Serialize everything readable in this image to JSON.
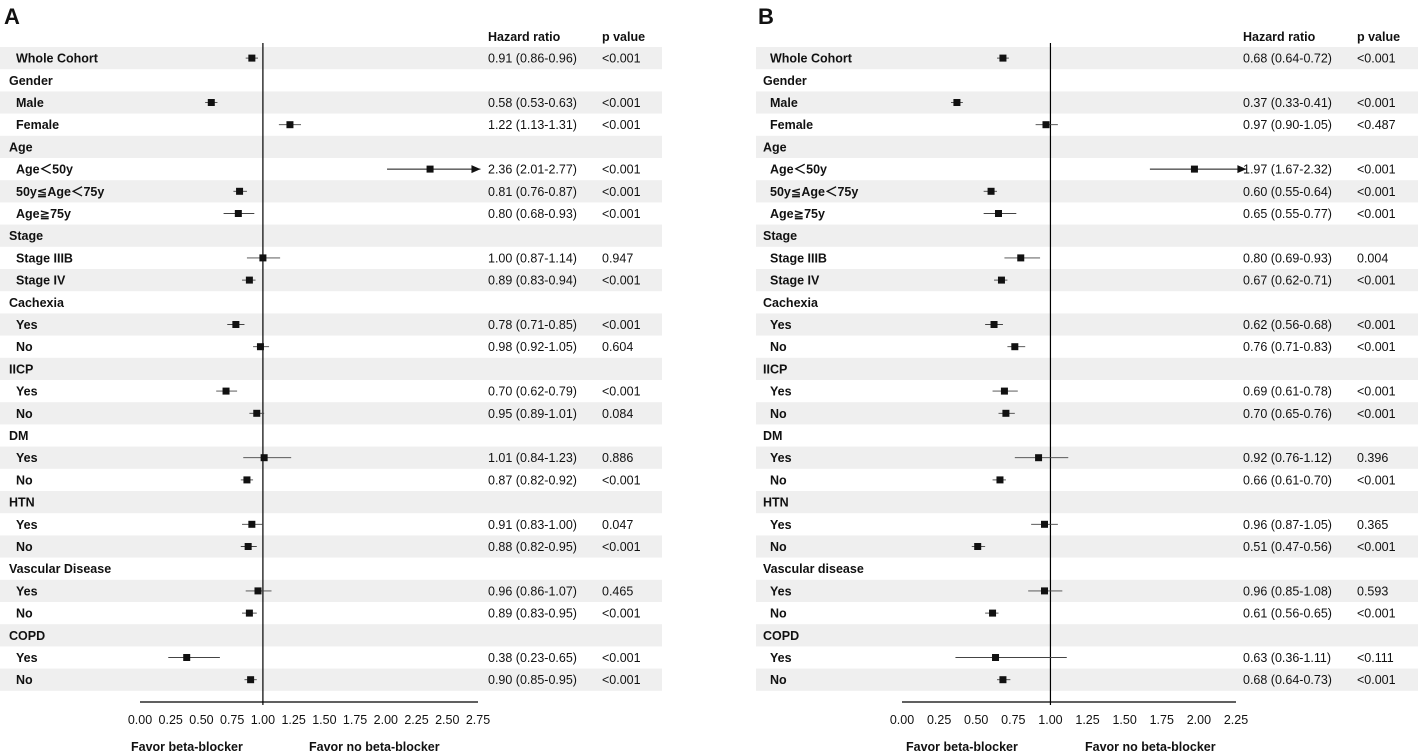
{
  "panels": [
    {
      "letter": "A",
      "headers": {
        "hr": "Hazard ratio",
        "p": "p value"
      },
      "favor_left": "Favor beta-blocker",
      "favor_right": "Favor no beta-blocker",
      "axis": {
        "min": 0,
        "max": 2.75,
        "ticks": [
          "0.00",
          "0.25",
          "0.50",
          "0.75",
          "1.00",
          "1.25",
          "1.50",
          "1.75",
          "2.00",
          "2.25",
          "2.50",
          "2.75"
        ],
        "ref": 1.0
      },
      "rows": [
        {
          "label": "Whole Cohort",
          "type": "estimate",
          "est": 0.91,
          "lo": 0.86,
          "hi": 0.96,
          "hr": "0.91 (0.86-0.96)",
          "p": "<0.001"
        },
        {
          "label": "Gender",
          "type": "header"
        },
        {
          "label": "Male",
          "type": "estimate",
          "est": 0.58,
          "lo": 0.53,
          "hi": 0.63,
          "hr": "0.58 (0.53-0.63)",
          "p": "<0.001"
        },
        {
          "label": "Female",
          "type": "estimate",
          "est": 1.22,
          "lo": 1.13,
          "hi": 1.31,
          "hr": "1.22 (1.13-1.31)",
          "p": "<0.001"
        },
        {
          "label": "Age",
          "type": "header"
        },
        {
          "label": "Age＜50y",
          "type": "estimate",
          "est": 2.36,
          "lo": 2.01,
          "hi": 2.77,
          "arrow": true,
          "hr": "2.36 (2.01-2.77)",
          "p": "<0.001"
        },
        {
          "label": "50y≦Age＜75y",
          "type": "estimate",
          "est": 0.81,
          "lo": 0.76,
          "hi": 0.87,
          "hr": "0.81 (0.76-0.87)",
          "p": "<0.001"
        },
        {
          "label": "Age≧75y",
          "type": "estimate",
          "est": 0.8,
          "lo": 0.68,
          "hi": 0.93,
          "hr": "0.80 (0.68-0.93)",
          "p": "<0.001"
        },
        {
          "label": "Stage",
          "type": "header"
        },
        {
          "label": "Stage IIIB",
          "type": "estimate",
          "est": 1.0,
          "lo": 0.87,
          "hi": 1.14,
          "hr": "1.00 (0.87-1.14)",
          "p": "0.947"
        },
        {
          "label": "Stage IV",
          "type": "estimate",
          "est": 0.89,
          "lo": 0.83,
          "hi": 0.94,
          "hr": "0.89 (0.83-0.94)",
          "p": "<0.001"
        },
        {
          "label": "Cachexia",
          "type": "header"
        },
        {
          "label": "Yes",
          "type": "estimate",
          "est": 0.78,
          "lo": 0.71,
          "hi": 0.85,
          "hr": "0.78 (0.71-0.85)",
          "p": "<0.001"
        },
        {
          "label": "No",
          "type": "estimate",
          "est": 0.98,
          "lo": 0.92,
          "hi": 1.05,
          "hr": "0.98 (0.92-1.05)",
          "p": "0.604"
        },
        {
          "label": "IICP",
          "type": "header"
        },
        {
          "label": "Yes",
          "type": "estimate",
          "est": 0.7,
          "lo": 0.62,
          "hi": 0.79,
          "hr": "0.70 (0.62-0.79)",
          "p": "<0.001"
        },
        {
          "label": "No",
          "type": "estimate",
          "est": 0.95,
          "lo": 0.89,
          "hi": 1.01,
          "hr": "0.95 (0.89-1.01)",
          "p": "0.084"
        },
        {
          "label": "DM",
          "type": "header"
        },
        {
          "label": "Yes",
          "type": "estimate",
          "est": 1.01,
          "lo": 0.84,
          "hi": 1.23,
          "hr": "1.01 (0.84-1.23)",
          "p": "0.886"
        },
        {
          "label": "No",
          "type": "estimate",
          "est": 0.87,
          "lo": 0.82,
          "hi": 0.92,
          "hr": "0.87 (0.82-0.92)",
          "p": "<0.001"
        },
        {
          "label": "HTN",
          "type": "header"
        },
        {
          "label": "Yes",
          "type": "estimate",
          "est": 0.91,
          "lo": 0.83,
          "hi": 1.0,
          "hr": "0.91 (0.83-1.00)",
          "p": "0.047"
        },
        {
          "label": "No",
          "type": "estimate",
          "est": 0.88,
          "lo": 0.82,
          "hi": 0.95,
          "hr": "0.88 (0.82-0.95)",
          "p": "<0.001"
        },
        {
          "label": "Vascular Disease",
          "type": "header"
        },
        {
          "label": "Yes",
          "type": "estimate",
          "est": 0.96,
          "lo": 0.86,
          "hi": 1.07,
          "hr": "0.96 (0.86-1.07)",
          "p": "0.465"
        },
        {
          "label": "No",
          "type": "estimate",
          "est": 0.89,
          "lo": 0.83,
          "hi": 0.95,
          "hr": "0.89 (0.83-0.95)",
          "p": "<0.001"
        },
        {
          "label": "COPD",
          "type": "header"
        },
        {
          "label": "Yes",
          "type": "estimate",
          "est": 0.38,
          "lo": 0.23,
          "hi": 0.65,
          "hr": "0.38 (0.23-0.65)",
          "p": "<0.001"
        },
        {
          "label": "No",
          "type": "estimate",
          "est": 0.9,
          "lo": 0.85,
          "hi": 0.95,
          "hr": "0.90 (0.85-0.95)",
          "p": "<0.001"
        }
      ]
    },
    {
      "letter": "B",
      "headers": {
        "hr": "Hazard ratio",
        "p": "p value"
      },
      "favor_left": "Favor beta-blocker",
      "favor_right": "Favor no beta-blocker",
      "axis": {
        "min": 0,
        "max": 2.25,
        "ticks": [
          "0.00",
          "0.25",
          "0.50",
          "0.75",
          "1.00",
          "1.25",
          "1.50",
          "1.75",
          "2.00",
          "2.25"
        ],
        "ref": 1.0
      },
      "rows": [
        {
          "label": "Whole Cohort",
          "type": "estimate",
          "est": 0.68,
          "lo": 0.64,
          "hi": 0.72,
          "hr": "0.68 (0.64-0.72)",
          "p": "<0.001"
        },
        {
          "label": "Gender",
          "type": "header"
        },
        {
          "label": "Male",
          "type": "estimate",
          "est": 0.37,
          "lo": 0.33,
          "hi": 0.41,
          "hr": "0.37 (0.33-0.41)",
          "p": "<0.001"
        },
        {
          "label": "Female",
          "type": "estimate",
          "est": 0.97,
          "lo": 0.9,
          "hi": 1.05,
          "hr": "0.97 (0.90-1.05)",
          "p": "<0.487"
        },
        {
          "label": "Age",
          "type": "header"
        },
        {
          "label": "Age＜50y",
          "type": "estimate",
          "est": 1.97,
          "lo": 1.67,
          "hi": 2.32,
          "arrow": true,
          "hr": "1.97 (1.67-2.32)",
          "p": "<0.001"
        },
        {
          "label": "50y≦Age＜75y",
          "type": "estimate",
          "est": 0.6,
          "lo": 0.55,
          "hi": 0.64,
          "hr": "0.60 (0.55-0.64)",
          "p": "<0.001"
        },
        {
          "label": "Age≧75y",
          "type": "estimate",
          "est": 0.65,
          "lo": 0.55,
          "hi": 0.77,
          "hr": "0.65 (0.55-0.77)",
          "p": "<0.001"
        },
        {
          "label": "Stage",
          "type": "header"
        },
        {
          "label": "Stage IIIB",
          "type": "estimate",
          "est": 0.8,
          "lo": 0.69,
          "hi": 0.93,
          "hr": "0.80 (0.69-0.93)",
          "p": "0.004"
        },
        {
          "label": "Stage IV",
          "type": "estimate",
          "est": 0.67,
          "lo": 0.62,
          "hi": 0.71,
          "hr": "0.67 (0.62-0.71)",
          "p": "<0.001"
        },
        {
          "label": "Cachexia",
          "type": "header"
        },
        {
          "label": "Yes",
          "type": "estimate",
          "est": 0.62,
          "lo": 0.56,
          "hi": 0.68,
          "hr": "0.62 (0.56-0.68)",
          "p": "<0.001"
        },
        {
          "label": "No",
          "type": "estimate",
          "est": 0.76,
          "lo": 0.71,
          "hi": 0.83,
          "hr": "0.76 (0.71-0.83)",
          "p": "<0.001"
        },
        {
          "label": "IICP",
          "type": "header"
        },
        {
          "label": "Yes",
          "type": "estimate",
          "est": 0.69,
          "lo": 0.61,
          "hi": 0.78,
          "hr": "0.69 (0.61-0.78)",
          "p": "<0.001"
        },
        {
          "label": "No",
          "type": "estimate",
          "est": 0.7,
          "lo": 0.65,
          "hi": 0.76,
          "hr": "0.70 (0.65-0.76)",
          "p": "<0.001"
        },
        {
          "label": "DM",
          "type": "header"
        },
        {
          "label": "Yes",
          "type": "estimate",
          "est": 0.92,
          "lo": 0.76,
          "hi": 1.12,
          "hr": "0.92 (0.76-1.12)",
          "p": "0.396"
        },
        {
          "label": "No",
          "type": "estimate",
          "est": 0.66,
          "lo": 0.61,
          "hi": 0.7,
          "hr": "0.66 (0.61-0.70)",
          "p": "<0.001"
        },
        {
          "label": "HTN",
          "type": "header"
        },
        {
          "label": "Yes",
          "type": "estimate",
          "est": 0.96,
          "lo": 0.87,
          "hi": 1.05,
          "hr": "0.96 (0.87-1.05)",
          "p": "0.365"
        },
        {
          "label": "No",
          "type": "estimate",
          "est": 0.51,
          "lo": 0.47,
          "hi": 0.56,
          "hr": "0.51 (0.47-0.56)",
          "p": "<0.001"
        },
        {
          "label": "Vascular disease",
          "type": "header"
        },
        {
          "label": "Yes",
          "type": "estimate",
          "est": 0.96,
          "lo": 0.85,
          "hi": 1.08,
          "hr": "0.96 (0.85-1.08)",
          "p": "0.593"
        },
        {
          "label": "No",
          "type": "estimate",
          "est": 0.61,
          "lo": 0.56,
          "hi": 0.65,
          "hr": "0.61 (0.56-0.65)",
          "p": "<0.001"
        },
        {
          "label": "COPD",
          "type": "header"
        },
        {
          "label": "Yes",
          "type": "estimate",
          "est": 0.63,
          "lo": 0.36,
          "hi": 1.11,
          "hr": "0.63 (0.36-1.11)",
          "p": "<0.111"
        },
        {
          "label": "No",
          "type": "estimate",
          "est": 0.68,
          "lo": 0.64,
          "hi": 0.73,
          "hr": "0.68 (0.64-0.73)",
          "p": "<0.001"
        }
      ]
    }
  ],
  "chart_data": [
    {
      "type": "forest",
      "panel": "A",
      "xlim": [
        0,
        2.75
      ],
      "reference": 1.0,
      "xlabel_left": "Favor beta-blocker",
      "xlabel_right": "Favor no beta-blocker",
      "groups": [
        "Whole Cohort",
        "Gender",
        "Age",
        "Stage",
        "Cachexia",
        "IICP",
        "DM",
        "HTN",
        "Vascular Disease",
        "COPD"
      ]
    },
    {
      "type": "forest",
      "panel": "B",
      "xlim": [
        0,
        2.25
      ],
      "reference": 1.0,
      "xlabel_left": "Favor beta-blocker",
      "xlabel_right": "Favor no beta-blocker",
      "groups": [
        "Whole Cohort",
        "Gender",
        "Age",
        "Stage",
        "Cachexia",
        "IICP",
        "DM",
        "HTN",
        "Vascular disease",
        "COPD"
      ]
    }
  ],
  "colors": {
    "band": "#efefef",
    "ink": "#111111",
    "axis": "#000000",
    "ci": "#444444"
  }
}
